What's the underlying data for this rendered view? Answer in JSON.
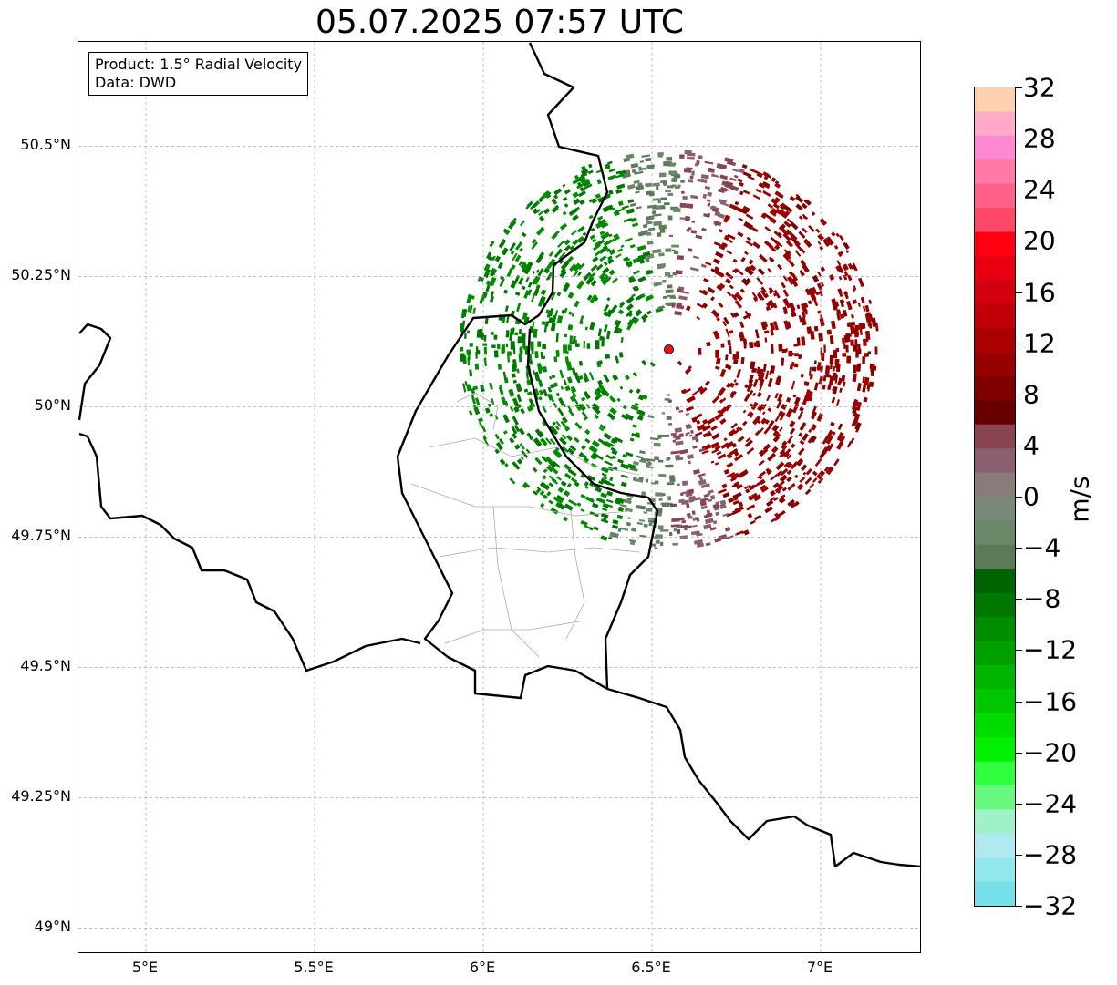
{
  "title": "05.07.2025 07:57 UTC",
  "info": {
    "product": "Product: 1.5° Radial Velocity",
    "data_source": "Data: DWD"
  },
  "map": {
    "lon_range": [
      4.8,
      7.3
    ],
    "lat_range": [
      48.95,
      50.7
    ],
    "lat_ticks": [
      {
        "value": 50.5,
        "label": "50.5°N"
      },
      {
        "value": 50.25,
        "label": "50.25°N"
      },
      {
        "value": 50.0,
        "label": "50°N"
      },
      {
        "value": 49.75,
        "label": "49.75°N"
      },
      {
        "value": 49.5,
        "label": "49.5°N"
      },
      {
        "value": 49.25,
        "label": "49.25°N"
      },
      {
        "value": 49.0,
        "label": "49°N"
      }
    ],
    "lon_ticks": [
      {
        "value": 5.0,
        "label": "5°E"
      },
      {
        "value": 5.5,
        "label": "5.5°E"
      },
      {
        "value": 6.0,
        "label": "6°E"
      },
      {
        "value": 6.5,
        "label": "6.5°E"
      },
      {
        "value": 7.0,
        "label": "7°E"
      }
    ],
    "radar_site": {
      "lon": 6.55,
      "lat": 50.11,
      "color": "#ee1111"
    },
    "grid": true
  },
  "colorbar": {
    "label": "m/s",
    "min": -32,
    "max": 32,
    "ticks": [
      {
        "value": 32,
        "label": "32"
      },
      {
        "value": 28,
        "label": "28"
      },
      {
        "value": 24,
        "label": "24"
      },
      {
        "value": 20,
        "label": "20"
      },
      {
        "value": 16,
        "label": "16"
      },
      {
        "value": 12,
        "label": "12"
      },
      {
        "value": 8,
        "label": "8"
      },
      {
        "value": 4,
        "label": "4"
      },
      {
        "value": 0,
        "label": "0"
      },
      {
        "value": -4,
        "label": "−4"
      },
      {
        "value": -8,
        "label": "−8"
      },
      {
        "value": -12,
        "label": "−12"
      },
      {
        "value": -16,
        "label": "−16"
      },
      {
        "value": -20,
        "label": "−20"
      },
      {
        "value": -24,
        "label": "−24"
      },
      {
        "value": -28,
        "label": "−28"
      },
      {
        "value": -32,
        "label": "−32"
      }
    ],
    "colors_top_to_bottom": [
      "#ffd0b0",
      "#ffaac8",
      "#ff88d0",
      "#ff78a8",
      "#ff6088",
      "#ff4868",
      "#ff0010",
      "#e80010",
      "#d40010",
      "#c00008",
      "#ac0000",
      "#980000",
      "#800000",
      "#680000",
      "#884450",
      "#8a6070",
      "#8a7a7a",
      "#7a8a7a",
      "#6a8868",
      "#5a7a58",
      "#006400",
      "#007800",
      "#008c00",
      "#00a000",
      "#00b400",
      "#00c800",
      "#00dc00",
      "#00f000",
      "#30ff40",
      "#68f880",
      "#a0f0c8",
      "#b0eaf0",
      "#90e8ec",
      "#78e0e8"
    ]
  }
}
